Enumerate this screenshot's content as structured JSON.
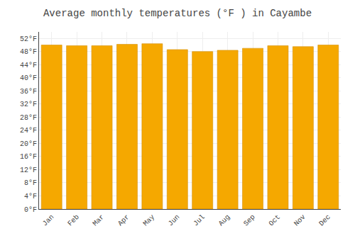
{
  "chart_data": {
    "type": "bar",
    "title": "Average monthly temperatures (°F ) in Cayambe",
    "categories": [
      "Jan",
      "Feb",
      "Mar",
      "Apr",
      "May",
      "Jun",
      "Jul",
      "Aug",
      "Sep",
      "Oct",
      "Nov",
      "Dec"
    ],
    "values": [
      50.0,
      49.8,
      49.8,
      50.2,
      50.4,
      48.6,
      48.0,
      48.4,
      49.0,
      49.8,
      49.5,
      50.0
    ],
    "color": "#F5A800",
    "ylim": [
      0,
      54
    ],
    "yticks": [
      {
        "value": 0,
        "label": "0°F"
      },
      {
        "value": 4,
        "label": "4°F"
      },
      {
        "value": 8,
        "label": "8°F"
      },
      {
        "value": 12,
        "label": "12°F"
      },
      {
        "value": 16,
        "label": "16°F"
      },
      {
        "value": 20,
        "label": "20°F"
      },
      {
        "value": 24,
        "label": "24°F"
      },
      {
        "value": 28,
        "label": "28°F"
      },
      {
        "value": 32,
        "label": "32°F"
      },
      {
        "value": 36,
        "label": "36°F"
      },
      {
        "value": 40,
        "label": "40°F"
      },
      {
        "value": 44,
        "label": "44°F"
      },
      {
        "value": 48,
        "label": "48°F"
      },
      {
        "value": 52,
        "label": "52°F"
      }
    ],
    "grid": true
  }
}
